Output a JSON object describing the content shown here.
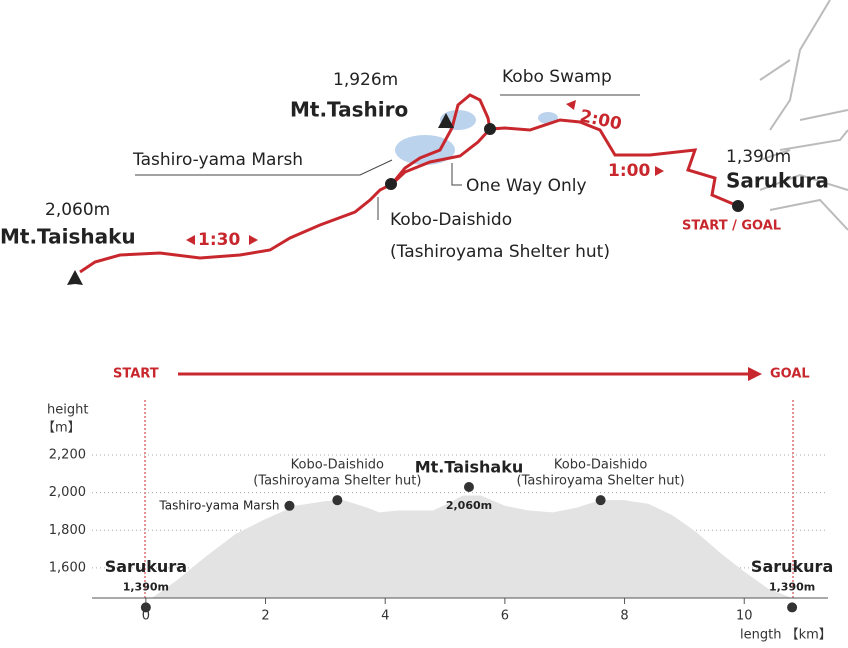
{
  "map": {
    "labels": {
      "taishaku": "Mt.Taishaku",
      "taishaku_elev": "2,060m",
      "time_1": "1:30",
      "marsh": "Tashiro-yama Marsh",
      "tashiro_elev": "1,926m",
      "tashiro": "Mt.Tashiro",
      "swamp": "Kobo Swamp",
      "one_way": "One Way Only",
      "time_2": "2:00",
      "time_3": "1:00",
      "sarukura_elev": "1,390m",
      "sarukura": "Sarukura",
      "start_goal": "START / GOAL",
      "daishido": "Kobo-Daishido",
      "shelter": "(Tashiroyama Shelter hut)"
    }
  },
  "profile": {
    "start": "START",
    "goal": "GOAL",
    "y_label": "height",
    "y_unit": "【m】",
    "x_label": "length 【km】",
    "xlim": [
      -0.9,
      11.4
    ],
    "ylim": [
      1440,
      2200
    ],
    "xticks": [
      0,
      2,
      4,
      6,
      8,
      10
    ],
    "yticks": [
      {
        "value": 1600,
        "label": "1,600"
      },
      {
        "value": 1800,
        "label": "1,800"
      },
      {
        "value": 2000,
        "label": "2,000"
      },
      {
        "value": 2200,
        "label": "2,200"
      }
    ],
    "x": [
      0.1,
      0.5,
      1,
      1.5,
      2,
      2.5,
      3,
      3.3,
      3.7,
      3.9,
      4.2,
      4.8,
      5,
      5.3,
      5.6,
      6,
      6.4,
      6.8,
      7.2,
      7.6,
      8,
      8.4,
      8.8,
      9.2,
      9.6,
      10,
      10.4,
      10.8
    ],
    "elevation": [
      1440,
      1530,
      1660,
      1780,
      1860,
      1930,
      1955,
      1960,
      1920,
      1895,
      1905,
      1905,
      1935,
      1985,
      1985,
      1930,
      1905,
      1895,
      1920,
      1960,
      1960,
      1940,
      1880,
      1790,
      1680,
      1580,
      1490,
      1440
    ],
    "points": [
      {
        "name": "Sarukura",
        "elevation_label": "1,390m",
        "x": 0,
        "y": 1390
      },
      {
        "name": "Tashiro-yama Marsh",
        "x": 2.4,
        "y": 1930
      },
      {
        "name": "Kobo-Daishido",
        "note": "(Tashiroyama Shelter hut)",
        "x": 3.2,
        "y": 1960
      },
      {
        "name": "Mt.Taishaku",
        "elevation_label": "2,060m",
        "x": 5.4,
        "y": 2030
      },
      {
        "name": "Kobo-Daishido",
        "note": "(Tashiroyama Shelter hut)",
        "x": 7.6,
        "y": 1960
      },
      {
        "name": "Sarukura",
        "elevation_label": "1,390m",
        "x": 10.8,
        "y": 1390
      }
    ]
  }
}
